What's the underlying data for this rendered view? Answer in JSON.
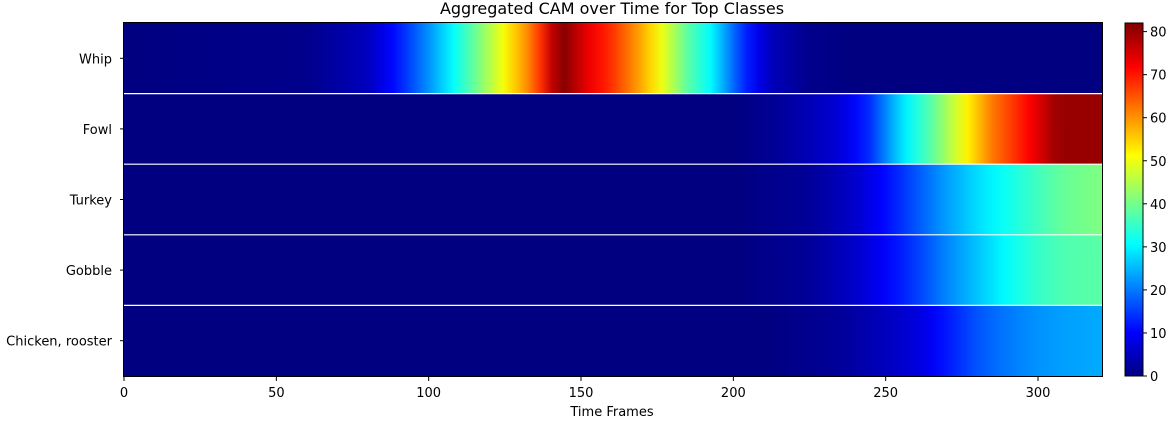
{
  "chart_data": {
    "type": "heatmap",
    "title": "Aggregated CAM over Time for Top Classes",
    "xlabel": "Time Frames",
    "ylabel": "",
    "xlim": [
      0,
      321
    ],
    "x_ticks": [
      0,
      50,
      100,
      150,
      200,
      250,
      300
    ],
    "colormap": "jet",
    "colorbar": {
      "min": 0,
      "max": 82,
      "ticks": [
        0,
        10,
        20,
        30,
        40,
        50,
        60,
        70,
        80
      ]
    },
    "grid": false,
    "row_separator_color": "#ffffff",
    "rows": [
      {
        "label": "Whip",
        "profile": [
          [
            0,
            0
          ],
          [
            60,
            1
          ],
          [
            80,
            5
          ],
          [
            90,
            12
          ],
          [
            100,
            22
          ],
          [
            110,
            33
          ],
          [
            120,
            45
          ],
          [
            128,
            55
          ],
          [
            135,
            64
          ],
          [
            140,
            76
          ],
          [
            145,
            82
          ],
          [
            150,
            75
          ],
          [
            160,
            68
          ],
          [
            170,
            58
          ],
          [
            178,
            48
          ],
          [
            185,
            38
          ],
          [
            193,
            30
          ],
          [
            198,
            22
          ],
          [
            203,
            14
          ],
          [
            212,
            5
          ],
          [
            225,
            1
          ],
          [
            240,
            0
          ],
          [
            321,
            0
          ]
        ]
      },
      {
        "label": "Fowl",
        "profile": [
          [
            0,
            0
          ],
          [
            200,
            0
          ],
          [
            215,
            2
          ],
          [
            235,
            7
          ],
          [
            245,
            14
          ],
          [
            255,
            28
          ],
          [
            265,
            38
          ],
          [
            275,
            50
          ],
          [
            285,
            62
          ],
          [
            295,
            70
          ],
          [
            302,
            76
          ],
          [
            306,
            80
          ],
          [
            321,
            80
          ]
        ]
      },
      {
        "label": "Turkey",
        "profile": [
          [
            0,
            0
          ],
          [
            200,
            0
          ],
          [
            225,
            2
          ],
          [
            240,
            6
          ],
          [
            250,
            11
          ],
          [
            260,
            17
          ],
          [
            270,
            23
          ],
          [
            280,
            28
          ],
          [
            290,
            32
          ],
          [
            300,
            36
          ],
          [
            308,
            39
          ],
          [
            321,
            41
          ]
        ]
      },
      {
        "label": "Gobble",
        "profile": [
          [
            0,
            0
          ],
          [
            200,
            0
          ],
          [
            225,
            2
          ],
          [
            240,
            6
          ],
          [
            250,
            10
          ],
          [
            260,
            15
          ],
          [
            270,
            21
          ],
          [
            280,
            26
          ],
          [
            290,
            31
          ],
          [
            300,
            35
          ],
          [
            308,
            37
          ],
          [
            321,
            38
          ]
        ]
      },
      {
        "label": "Chicken, rooster",
        "profile": [
          [
            0,
            0
          ],
          [
            210,
            0
          ],
          [
            235,
            2
          ],
          [
            250,
            5
          ],
          [
            262,
            8
          ],
          [
            270,
            12
          ],
          [
            280,
            17
          ],
          [
            290,
            20
          ],
          [
            300,
            22
          ],
          [
            308,
            23
          ],
          [
            321,
            24
          ]
        ]
      }
    ]
  }
}
